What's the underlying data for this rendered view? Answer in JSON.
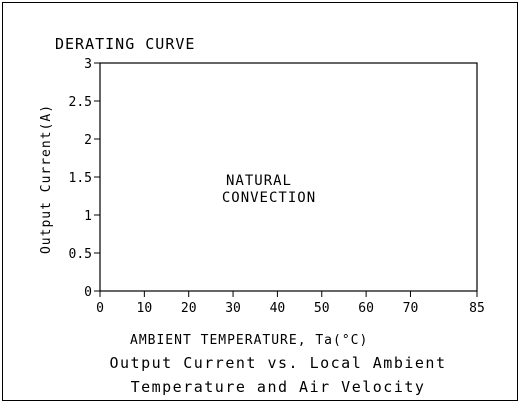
{
  "chart_data": {
    "type": "line",
    "title": "DERATING CURVE",
    "xlabel": "AMBIENT TEMPERATURE, Ta(°C)",
    "ylabel": "Output Current(A)",
    "xlim": [
      0,
      85
    ],
    "ylim": [
      0,
      3
    ],
    "x_ticks": [
      0,
      10,
      20,
      30,
      40,
      50,
      60,
      70,
      85
    ],
    "y_ticks": [
      0,
      0.5,
      1,
      1.5,
      2,
      2.5,
      3
    ],
    "x_tick_labels": [
      "0",
      "10",
      "20",
      "30",
      "40",
      "50",
      "60",
      "70",
      "85"
    ],
    "y_tick_labels": [
      "0",
      "0.5",
      "1",
      "1.5",
      "2",
      "2.5",
      "3"
    ],
    "series": [],
    "annotations": [
      "NATURAL",
      "CONVECTION"
    ],
    "caption": [
      "Output Current vs. Local Ambient",
      "Temperature and Air Velocity"
    ],
    "grid": false
  },
  "colors": {
    "axis": "#000000",
    "background": "#ffffff"
  }
}
